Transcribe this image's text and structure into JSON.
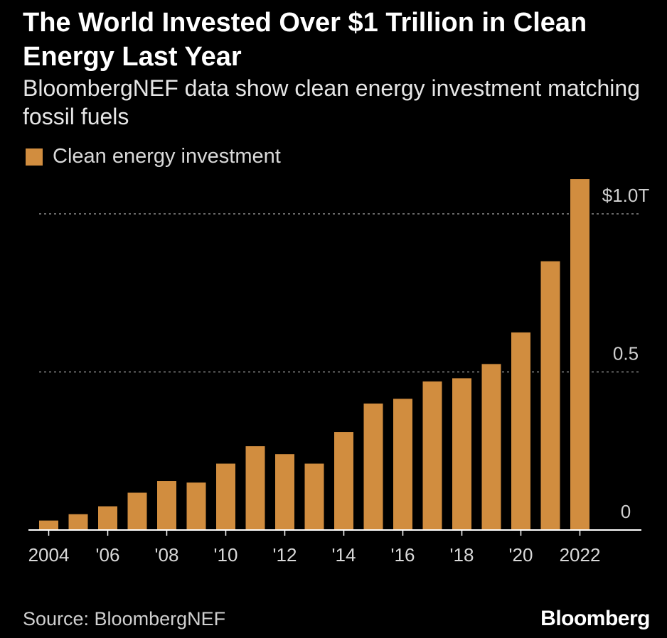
{
  "chart_data": {
    "type": "bar",
    "title": "The World Invested Over $1 Trillion in Clean Energy Last Year",
    "subtitle": "BloombergNEF data show clean energy investment matching fossil fuels",
    "categories": [
      "2004",
      "2005",
      "2006",
      "2007",
      "2008",
      "2009",
      "2010",
      "2011",
      "2012",
      "2013",
      "2014",
      "2015",
      "2016",
      "2017",
      "2018",
      "2019",
      "2020",
      "2021",
      "2022"
    ],
    "series": [
      {
        "name": "Clean energy investment",
        "color": "#d18d3f",
        "values": [
          0.03,
          0.05,
          0.075,
          0.118,
          0.155,
          0.15,
          0.21,
          0.265,
          0.24,
          0.21,
          0.31,
          0.4,
          0.415,
          0.47,
          0.48,
          0.525,
          0.625,
          0.85,
          1.11
        ]
      }
    ],
    "x_tick_labels": [
      "2004",
      "'06",
      "'08",
      "'10",
      "'12",
      "'14",
      "'16",
      "'18",
      "'20",
      "2022"
    ],
    "y_ticks": [
      {
        "value": 0,
        "label": "0"
      },
      {
        "value": 0.5,
        "label": "0.5"
      },
      {
        "value": 1.0,
        "label": "$1.0T"
      }
    ],
    "ylim": [
      0,
      1.11
    ],
    "grid": "dashed horizontal at 0.5 and 1.0",
    "legend_position": "top-left",
    "source": "Source: BloombergNEF",
    "brand": "Bloomberg"
  }
}
